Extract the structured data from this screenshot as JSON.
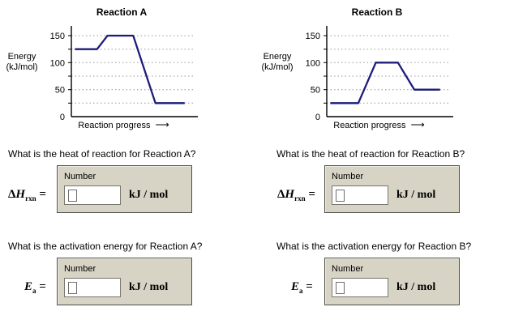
{
  "chart_data": [
    {
      "type": "line",
      "title": "Reaction A",
      "ylabel": "Energy (kJ/mol)",
      "ylabel_lines": [
        "Energy",
        "(kJ/mol)"
      ],
      "xlabel": "Reaction progress",
      "ylim": [
        0,
        165
      ],
      "yticks": [
        150,
        100,
        50,
        0
      ],
      "grid_values": [
        25,
        50,
        75,
        100,
        125,
        150
      ],
      "grid": true,
      "line_color": "#1c1c7a",
      "series": [
        {
          "name": "energy-profile",
          "points_xfrac_energy": [
            [
              0.03,
              125
            ],
            [
              0.22,
              125
            ],
            [
              0.31,
              150
            ],
            [
              0.53,
              150
            ],
            [
              0.72,
              25
            ],
            [
              0.97,
              25
            ]
          ]
        }
      ],
      "reactant_energy": 125,
      "peak_energy": 150,
      "product_energy": 25
    },
    {
      "type": "line",
      "title": "Reaction B",
      "ylabel": "Energy (kJ/mol)",
      "ylabel_lines": [
        "Energy",
        "(kJ/mol)"
      ],
      "xlabel": "Reaction progress",
      "ylim": [
        0,
        165
      ],
      "yticks": [
        150,
        100,
        50,
        0
      ],
      "grid_values": [
        25,
        50,
        75,
        100,
        125,
        150
      ],
      "grid": true,
      "line_color": "#1c1c7a",
      "series": [
        {
          "name": "energy-profile",
          "points_xfrac_energy": [
            [
              0.03,
              25
            ],
            [
              0.27,
              25
            ],
            [
              0.42,
              100
            ],
            [
              0.61,
              100
            ],
            [
              0.75,
              50
            ],
            [
              0.97,
              50
            ]
          ]
        }
      ],
      "reactant_energy": 25,
      "peak_energy": 100,
      "product_energy": 50
    }
  ],
  "icons": {
    "right_arrow": "⟶"
  },
  "sections": [
    {
      "question_heat": "What is the heat of reaction for Reaction A?",
      "question_ea": "What is the activation energy for Reaction A?"
    },
    {
      "question_heat": "What is the heat of reaction for Reaction B?",
      "question_ea": "What is the activation energy for Reaction B?"
    }
  ],
  "answer_box": {
    "field_label": "Number",
    "unit": "kJ / mol",
    "input_value": ""
  },
  "symbols": {
    "delta_h": {
      "delta": "Δ",
      "letter": "H",
      "sub": "rxn",
      "eq": "="
    },
    "ea": {
      "letter": "E",
      "sub": "a",
      "eq": "="
    }
  },
  "colors": {
    "curve": "#1c1c7a",
    "box_bg": "#d7d3c5",
    "box_border": "#50504a"
  }
}
